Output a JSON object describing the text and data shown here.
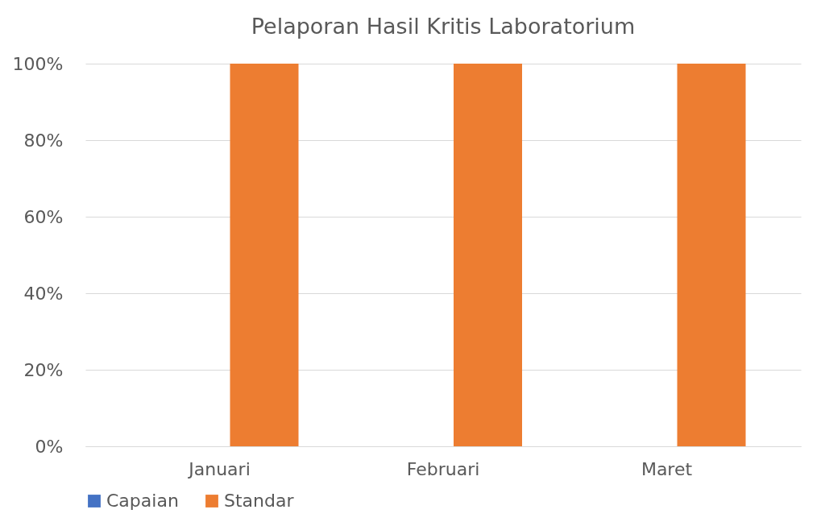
{
  "chart_data": {
    "type": "bar",
    "title": "Pelaporan Hasil Kritis Laboratorium",
    "categories": [
      "Januari",
      "Februari",
      "Maret"
    ],
    "series": [
      {
        "name": "Capaian",
        "color": "#4472c4",
        "values": [
          0,
          0,
          0
        ]
      },
      {
        "name": "Standar",
        "color": "#ed7d31",
        "values": [
          100,
          100,
          100
        ]
      }
    ],
    "ylim": [
      0,
      100
    ],
    "yticks": [
      {
        "value": 0,
        "label": "0%"
      },
      {
        "value": 20,
        "label": "20%"
      },
      {
        "value": 40,
        "label": "40%"
      },
      {
        "value": 60,
        "label": "60%"
      },
      {
        "value": 80,
        "label": "80%"
      },
      {
        "value": 100,
        "label": "100%"
      }
    ],
    "grid": "y",
    "legend": "bottom"
  }
}
